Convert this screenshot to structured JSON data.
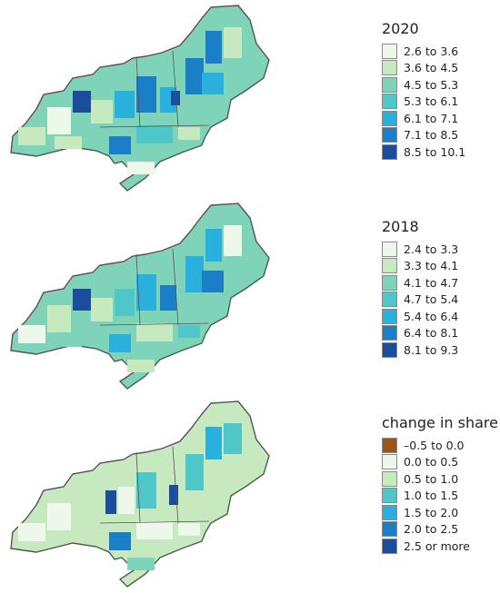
{
  "maps": [
    {
      "id": "map-2020",
      "legend_title": "2020",
      "legend": [
        {
          "label": "2.6 to 3.6",
          "color": "#eef8ea"
        },
        {
          "label": "3.6 to 4.5",
          "color": "#c7e9c0"
        },
        {
          "label": "4.5 to 5.3",
          "color": "#7fd3b9"
        },
        {
          "label": "5.3 to 6.1",
          "color": "#4fc6c8"
        },
        {
          "label": "6.1 to 7.1",
          "color": "#29b0dc"
        },
        {
          "label": "7.1 to 8.5",
          "color": "#1b7fc7"
        },
        {
          "label": "8.5 to 10.1",
          "color": "#1a4e9c"
        }
      ]
    },
    {
      "id": "map-2018",
      "legend_title": "2018",
      "legend": [
        {
          "label": "2.4 to 3.3",
          "color": "#eef8ea"
        },
        {
          "label": "3.3 to 4.1",
          "color": "#c7e9c0"
        },
        {
          "label": "4.1 to 4.7",
          "color": "#7fd3b9"
        },
        {
          "label": "4.7 to 5.4",
          "color": "#4fc6c8"
        },
        {
          "label": "5.4 to 6.4",
          "color": "#29b0dc"
        },
        {
          "label": "6.4 to 8.1",
          "color": "#1b7fc7"
        },
        {
          "label": "8.1 to 9.3",
          "color": "#1a4e9c"
        }
      ]
    },
    {
      "id": "map-change",
      "legend_title": "change in share",
      "legend": [
        {
          "label": "–0.5 to 0.0",
          "color": "#9c5514"
        },
        {
          "label": "0.0 to 0.5",
          "color": "#eef8ea"
        },
        {
          "label": "0.5 to 1.0",
          "color": "#c7e9c0"
        },
        {
          "label": "1.0 to 1.5",
          "color": "#4fc6c8"
        },
        {
          "label": "1.5 to 2.0",
          "color": "#29b0dc"
        },
        {
          "label": "2.0 to 2.5",
          "color": "#1b7fc7"
        },
        {
          "label": "2.5 or more",
          "color": "#1a4e9c"
        }
      ]
    }
  ]
}
